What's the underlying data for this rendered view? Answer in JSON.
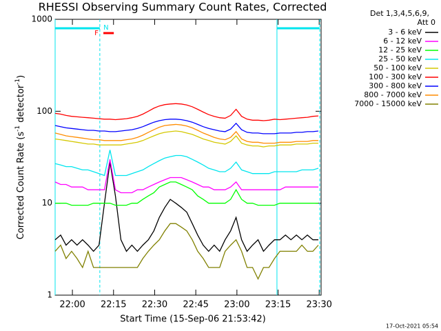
{
  "chart_data": {
    "type": "line",
    "title": "RHESSI Observing Summary Count Rates, Corrected",
    "xlabel": "Start Time (15-Sep-06 21:53:42)",
    "ylabel_parts": [
      "Corrected Count Rate (s",
      "-1",
      " detector",
      "-1",
      ")"
    ],
    "legend_header": [
      "Det 1,3,4,5,6,9,",
      "Att 0"
    ],
    "footer": "17-Oct-2021 05:54",
    "log_y": true,
    "xlim": [
      0,
      97
    ],
    "ylim": [
      1,
      1000
    ],
    "yticks": [
      1,
      10,
      100,
      1000
    ],
    "xticks": [
      {
        "value": 6.3,
        "label": "22:00"
      },
      {
        "value": 21.3,
        "label": "22:15"
      },
      {
        "value": 36.3,
        "label": "22:30"
      },
      {
        "value": 51.3,
        "label": "22:45"
      },
      {
        "value": 66.3,
        "label": "23:00"
      },
      {
        "value": 81.3,
        "label": "23:15"
      },
      {
        "value": 96.3,
        "label": "23:30"
      }
    ],
    "night": {
      "label": "N",
      "color": "#00e5ee",
      "intervals": [
        [
          0,
          16.3
        ],
        [
          80.9,
          96.5
        ]
      ]
    },
    "flare": {
      "label": "F",
      "color": "#ff0000",
      "intervals": [
        [
          17.6,
          21.4
        ]
      ]
    },
    "x": [
      0,
      2,
      4,
      6,
      8,
      10,
      12,
      14,
      16,
      18,
      20,
      22,
      24,
      26,
      28,
      30,
      32,
      34,
      36,
      38,
      40,
      42,
      44,
      46,
      48,
      50,
      52,
      54,
      56,
      58,
      60,
      62,
      64,
      66,
      68,
      70,
      72,
      74,
      76,
      78,
      80,
      82,
      84,
      86,
      88,
      90,
      92,
      94,
      96
    ],
    "series": [
      {
        "name": "3 - 6 keV",
        "color": "#000000",
        "values": [
          4,
          4.5,
          3.5,
          4,
          3.5,
          4,
          3.5,
          3,
          3.5,
          10,
          28,
          12,
          4,
          3,
          3.5,
          3,
          3.5,
          4,
          5,
          7,
          9,
          11,
          10,
          9,
          8,
          6,
          4.5,
          3.5,
          3,
          3.5,
          3,
          4,
          5,
          7,
          4,
          3,
          3.5,
          4,
          3,
          3.5,
          4,
          4,
          4.5,
          4,
          4.5,
          4,
          4.5,
          4,
          4
        ]
      },
      {
        "name": "6 - 12 keV",
        "color": "#ff00ff",
        "values": [
          17,
          16,
          16,
          15,
          15,
          15,
          14,
          14,
          14,
          14,
          30,
          14,
          13,
          13,
          13,
          14,
          14,
          15,
          16,
          17,
          18,
          19,
          19,
          19,
          18,
          17,
          16,
          15,
          15,
          14,
          14,
          14,
          15,
          17,
          14,
          14,
          14,
          14,
          14,
          14,
          14,
          14,
          15,
          15,
          15,
          15,
          15,
          15,
          15
        ]
      },
      {
        "name": "12 - 25 keV",
        "color": "#00ff00",
        "values": [
          10,
          10,
          10,
          9.5,
          9.5,
          9.5,
          9.5,
          10,
          10,
          10,
          10,
          9.5,
          9.5,
          9.5,
          10,
          10,
          11,
          12,
          13,
          15,
          16,
          17,
          17,
          16,
          15,
          14,
          12,
          11,
          10,
          10,
          10,
          10,
          11,
          14,
          11,
          10,
          10,
          9.5,
          9.5,
          9.5,
          9.5,
          10,
          10,
          10,
          10,
          10,
          10,
          10,
          10
        ]
      },
      {
        "name": "25 - 50 keV",
        "color": "#00e5ee",
        "values": [
          27,
          26,
          25,
          25,
          24,
          23,
          23,
          22,
          21,
          20,
          38,
          20,
          20,
          20,
          21,
          22,
          23,
          25,
          27,
          29,
          31,
          32,
          33,
          33,
          32,
          30,
          28,
          26,
          24,
          23,
          22,
          22,
          24,
          28,
          23,
          22,
          21,
          21,
          21,
          21,
          22,
          22,
          22,
          22,
          22,
          23,
          23,
          23,
          24
        ]
      },
      {
        "name": "50 - 100 keV",
        "color": "#d4c800",
        "values": [
          50,
          49,
          48,
          47,
          46,
          45,
          44,
          44,
          43,
          43,
          43,
          43,
          43,
          44,
          45,
          46,
          48,
          51,
          54,
          57,
          59,
          60,
          61,
          60,
          58,
          56,
          53,
          50,
          48,
          46,
          45,
          44,
          47,
          54,
          45,
          43,
          42,
          42,
          41,
          42,
          42,
          43,
          43,
          43,
          44,
          44,
          44,
          45,
          45
        ]
      },
      {
        "name": "100 - 300 keV",
        "color": "#ff0000",
        "values": [
          95,
          93,
          90,
          88,
          87,
          86,
          85,
          84,
          83,
          82,
          82,
          81,
          82,
          83,
          85,
          88,
          93,
          100,
          108,
          114,
          118,
          120,
          121,
          120,
          117,
          112,
          105,
          98,
          92,
          88,
          85,
          84,
          90,
          105,
          88,
          82,
          80,
          80,
          79,
          80,
          82,
          81,
          82,
          83,
          84,
          85,
          86,
          88,
          89
        ]
      },
      {
        "name": "300 - 800 keV",
        "color": "#0000ff",
        "values": [
          70,
          68,
          66,
          65,
          64,
          63,
          62,
          62,
          61,
          61,
          60,
          60,
          61,
          62,
          63,
          65,
          68,
          72,
          76,
          79,
          81,
          82,
          82,
          81,
          79,
          76,
          72,
          68,
          65,
          63,
          61,
          60,
          64,
          74,
          63,
          59,
          58,
          58,
          57,
          57,
          57,
          58,
          58,
          58,
          59,
          59,
          60,
          60,
          61
        ]
      },
      {
        "name": "800 - 7000 keV",
        "color": "#ff8c00",
        "values": [
          58,
          56,
          54,
          53,
          52,
          51,
          50,
          49,
          49,
          48,
          48,
          48,
          48,
          49,
          50,
          52,
          55,
          59,
          63,
          67,
          70,
          71,
          72,
          71,
          69,
          66,
          62,
          58,
          55,
          52,
          50,
          49,
          52,
          60,
          50,
          47,
          46,
          46,
          45,
          45,
          45,
          46,
          46,
          46,
          47,
          47,
          47,
          48,
          48
        ]
      },
      {
        "name": "7000 - 15000 keV",
        "color": "#808000",
        "values": [
          3,
          3.5,
          2.5,
          3,
          2.5,
          2,
          3,
          2,
          2,
          2,
          2,
          2,
          2,
          2,
          2,
          2,
          2.5,
          3,
          3.5,
          4,
          5,
          6,
          6,
          5.5,
          5,
          4,
          3,
          2.5,
          2,
          2,
          2,
          3,
          3.5,
          4,
          3,
          2,
          2,
          1.5,
          2,
          2,
          2.5,
          3,
          3,
          3,
          3,
          3.5,
          3,
          3,
          3.5
        ]
      }
    ]
  }
}
